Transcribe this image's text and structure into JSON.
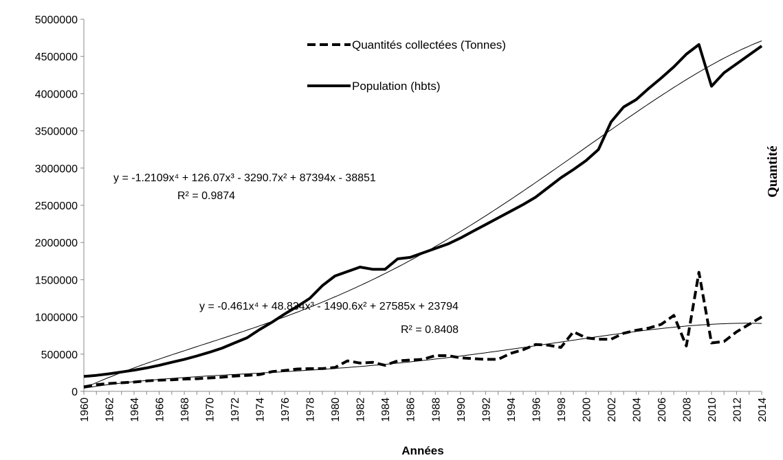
{
  "chart_data": {
    "type": "line",
    "x_label": "Années",
    "y2_title": "Quantité",
    "categories": [
      "1960",
      null,
      "1962",
      null,
      "1964",
      null,
      "1966",
      null,
      "1968",
      null,
      "1970",
      null,
      "1972",
      null,
      "1974",
      null,
      "1976",
      null,
      "1978",
      null,
      "1980",
      null,
      "1982",
      null,
      "1984",
      null,
      "1986",
      null,
      "1988",
      null,
      "1990",
      null,
      "1992",
      null,
      "1994",
      null,
      "1996",
      null,
      "1998",
      null,
      "2000",
      null,
      "2002",
      null,
      "2004",
      null,
      "2006",
      null,
      "2008",
      null,
      "2010",
      null,
      "2012",
      null,
      "2014"
    ],
    "series": [
      {
        "name": "Quantités collectées (Tonnes)",
        "color": "#000000",
        "dash": true,
        "trendline_degree": 4,
        "values": [
          60000,
          90000,
          105000,
          115000,
          125000,
          140000,
          150000,
          155000,
          165000,
          170000,
          180000,
          190000,
          205000,
          215000,
          225000,
          265000,
          280000,
          300000,
          305000,
          305000,
          320000,
          410000,
          380000,
          390000,
          350000,
          410000,
          420000,
          430000,
          480000,
          480000,
          450000,
          440000,
          430000,
          430000,
          510000,
          560000,
          630000,
          620000,
          590000,
          800000,
          720000,
          700000,
          700000,
          780000,
          820000,
          850000,
          900000,
          1020000,
          610000,
          1600000,
          650000,
          670000,
          800000,
          900000,
          1000000
        ]
      },
      {
        "name": "Population (hbts)",
        "color": "#000000",
        "dash": false,
        "trendline_degree": 4,
        "values": [
          200000,
          215000,
          235000,
          260000,
          285000,
          315000,
          350000,
          390000,
          430000,
          475000,
          525000,
          580000,
          650000,
          720000,
          830000,
          930000,
          1040000,
          1140000,
          1250000,
          1420000,
          1550000,
          1610000,
          1670000,
          1640000,
          1640000,
          1780000,
          1800000,
          1860000,
          1920000,
          1980000,
          2060000,
          2150000,
          2240000,
          2330000,
          2420000,
          2510000,
          2610000,
          2740000,
          2870000,
          2980000,
          3100000,
          3250000,
          3620000,
          3820000,
          3920000,
          4070000,
          4210000,
          4360000,
          4530000,
          4660000,
          4100000,
          4280000,
          4400000,
          4520000,
          4640000
        ]
      }
    ],
    "annotations": [
      "y = -1.2109x⁴ + 126.07x³ - 3290.7x² + 87394x - 38851",
      "R² = 0.9874",
      "y = -0.461x⁴ + 48.834x³ - 1490.6x² + 27585x + 23794",
      "R² = 0.8408"
    ],
    "ylim": [
      0,
      5000000
    ],
    "yticks": [
      0,
      500000,
      1000000,
      1500000,
      2000000,
      2500000,
      3000000,
      3500000,
      4000000,
      4500000,
      5000000
    ]
  }
}
